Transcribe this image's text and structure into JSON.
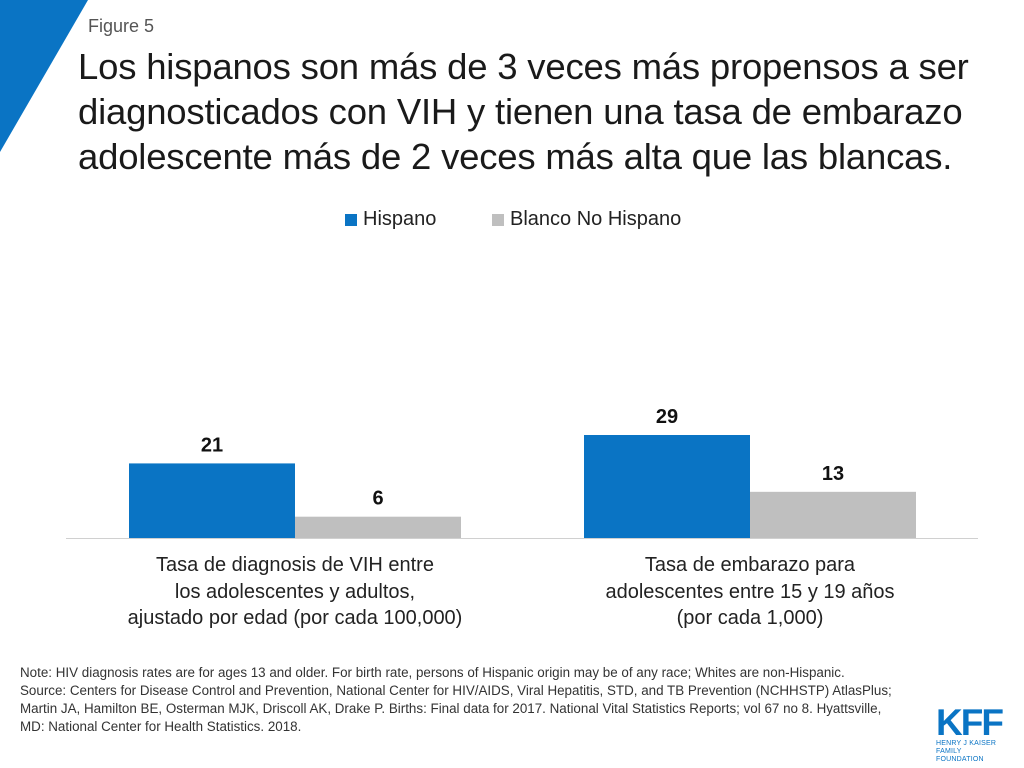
{
  "figure_label": "Figure 5",
  "title": "Los hispanos son más de 3 veces más propensos a ser diagnosticados con VIH y tienen una tasa de embarazo adolescente más de 2 veces más alta que las blancas.",
  "colors": {
    "accent": "#0a74c4",
    "hispanic": "#0a74c4",
    "white": "#bfbfbf"
  },
  "chart_data": {
    "type": "bar",
    "title": "Los hispanos son más de 3 veces más propensos a ser diagnosticados con VIH y tienen una tasa de embarazo adolescente más de 2 veces más alta que las blancas.",
    "categories": [
      "Tasa de diagnosis de VIH entre los adolescentes y adultos, ajustado por edad (por cada 100,000)",
      "Tasa de embarazo para adolescentes entre 15 y 19 años (por cada 1,000)"
    ],
    "category_lines": [
      [
        "Tasa de diagnosis de VIH entre",
        "los adolescentes y adultos,",
        "ajustado por edad (por cada 100,000)"
      ],
      [
        "Tasa de embarazo para",
        "adolescentes entre 15 y 19 años",
        "(por cada 1,000)"
      ]
    ],
    "series": [
      {
        "name": "Hispano",
        "color": "#0a74c4",
        "values": [
          21,
          29
        ]
      },
      {
        "name": "Blanco No Hispano",
        "color": "#bfbfbf",
        "values": [
          6,
          13
        ]
      }
    ],
    "xlabel": "",
    "ylabel": "",
    "ylim": [
      0,
      29
    ],
    "grid": false,
    "legend_position": "top-center",
    "data_labels": true
  },
  "footnote": {
    "note": "Note: HIV diagnosis rates are for ages 13 and older. For birth rate, persons of Hispanic origin may be of any race; Whites are non-Hispanic.",
    "source": "Source: Centers for Disease Control and Prevention, National Center for HIV/AIDS, Viral Hepatitis, STD, and TB Prevention (NCHHSTP) AtlasPlus; Martin JA, Hamilton BE, Osterman MJK, Driscoll AK, Drake P. Births: Final data for 2017. National Vital Statistics Reports; vol 67 no 8. Hyattsville, MD: National Center for Health Statistics. 2018."
  },
  "logo": {
    "mark": "KFF",
    "line1": "HENRY J KAISER",
    "line2": "FAMILY FOUNDATION"
  }
}
